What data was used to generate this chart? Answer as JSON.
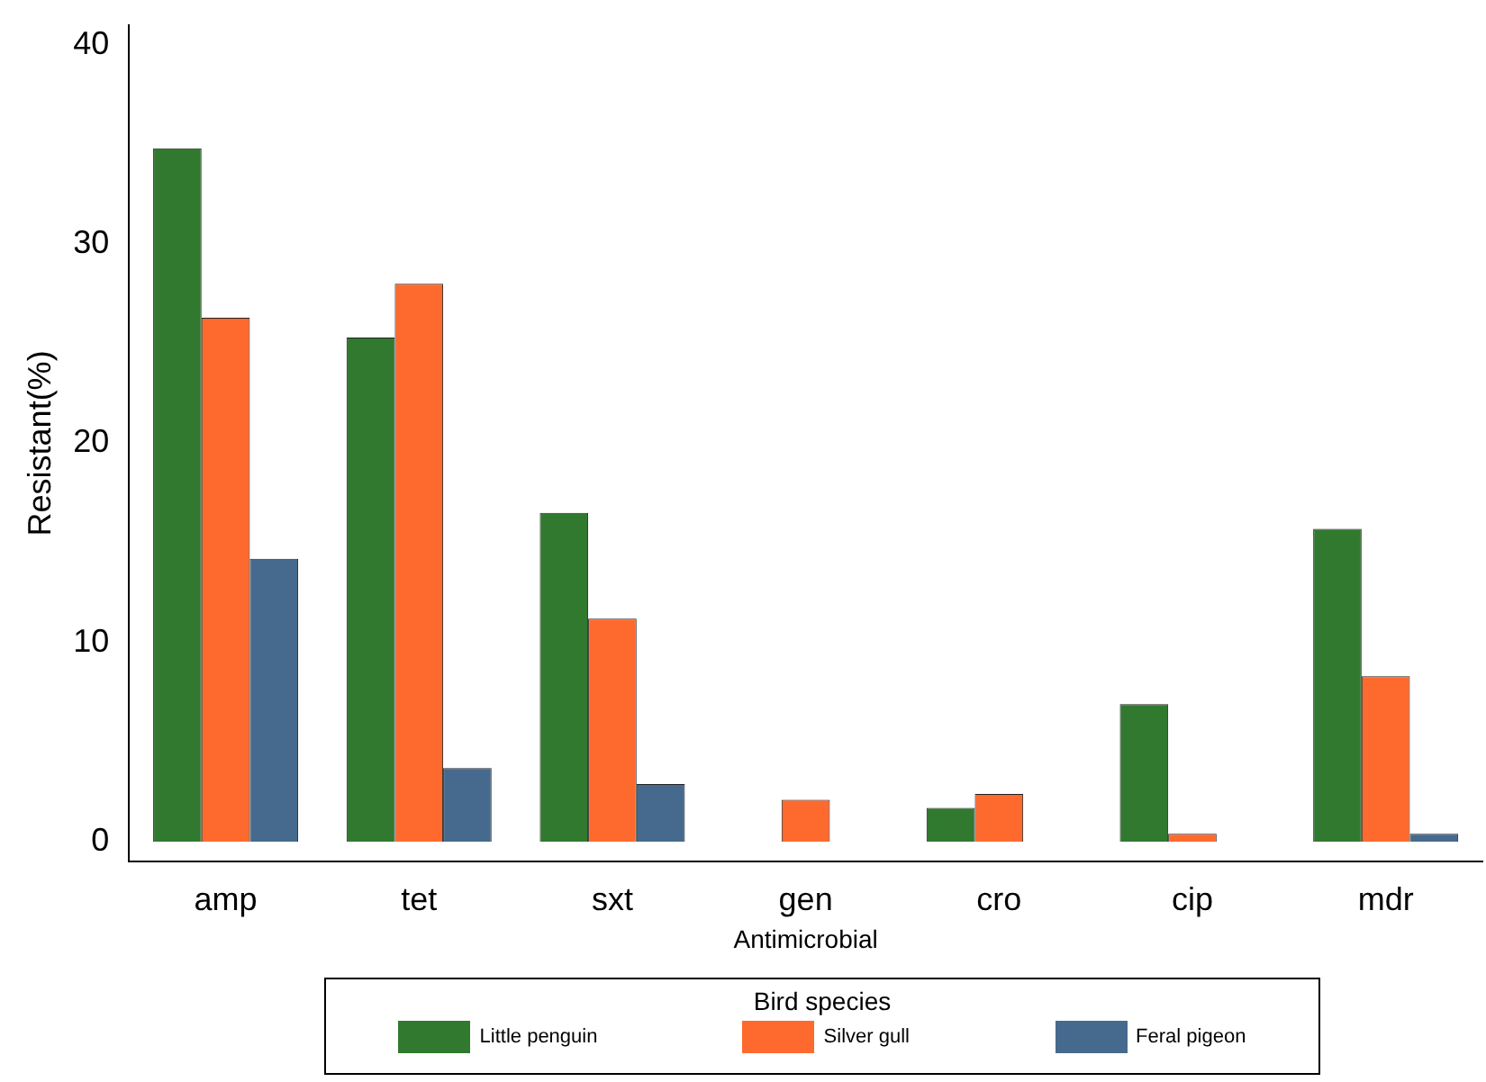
{
  "chart_data": {
    "type": "bar",
    "xlabel": "Antimicrobial",
    "ylabel": "Resistant(%)",
    "legend_title": "Bird species",
    "categories": [
      "amp",
      "tet",
      "sxt",
      "gen",
      "cro",
      "cip",
      "mdr"
    ],
    "series": [
      {
        "name": "Little penguin",
        "color": "#31792f",
        "values": [
          34.8,
          25.3,
          16.5,
          0,
          1.7,
          6.9,
          15.7
        ]
      },
      {
        "name": "Silver gull",
        "color": "#fe6a2d",
        "values": [
          26.3,
          28.0,
          11.2,
          2.1,
          2.4,
          0.4,
          8.3
        ]
      },
      {
        "name": "Feral pigeon",
        "color": "#466a8d",
        "values": [
          14.2,
          3.7,
          2.9,
          0,
          0,
          null,
          0.4
        ]
      }
    ],
    "ylim": [
      -1,
      41
    ],
    "yticks": [
      0,
      10,
      20,
      30,
      40
    ],
    "grid": false,
    "legend": "bottom"
  }
}
